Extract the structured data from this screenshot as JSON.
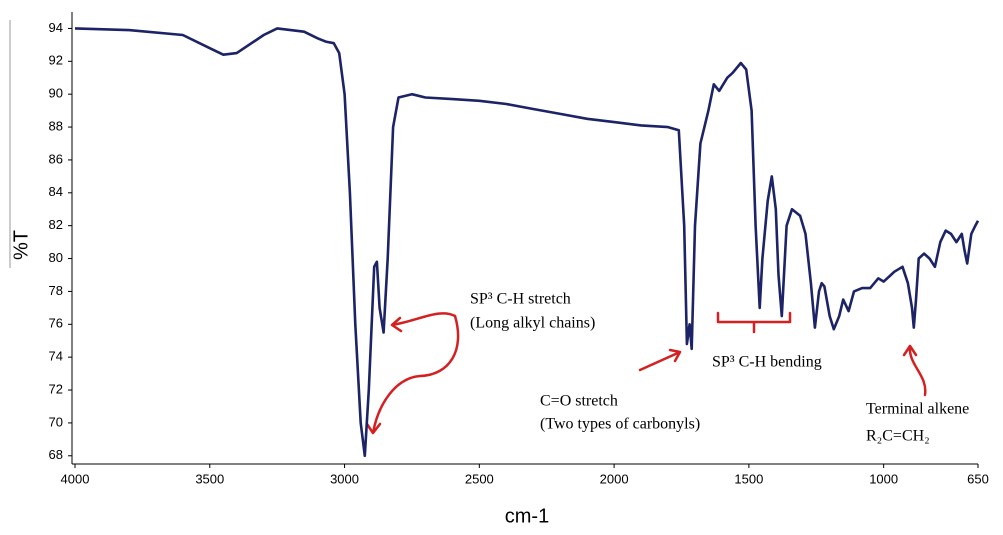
{
  "chart_data": {
    "type": "line",
    "xlabel": "cm-1",
    "ylabel": "%T",
    "xlim": [
      4000,
      650
    ],
    "ylim": [
      67.5,
      95
    ],
    "xticks": [
      4000,
      3500,
      3000,
      2500,
      2000,
      1500,
      1000,
      650
    ],
    "yticks": [
      68,
      70,
      72,
      74,
      76,
      78,
      80,
      82,
      84,
      86,
      88,
      90,
      92,
      94
    ],
    "grid": false,
    "annotations": [
      "SP³ C-H stretch",
      "(Long alkyl chains)",
      "C=O stretch",
      "(Two types of carbonyls)",
      "SP³ C-H bending",
      "Terminal alkene",
      "R₂C=CH₂"
    ],
    "x": [
      4000,
      3800,
      3600,
      3500,
      3450,
      3400,
      3300,
      3250,
      3150,
      3100,
      3070,
      3040,
      3020,
      3000,
      2980,
      2960,
      2940,
      2925,
      2910,
      2890,
      2880,
      2870,
      2855,
      2840,
      2820,
      2800,
      2750,
      2700,
      2600,
      2500,
      2400,
      2300,
      2200,
      2100,
      2000,
      1900,
      1800,
      1760,
      1740,
      1730,
      1720,
      1712,
      1700,
      1680,
      1650,
      1630,
      1610,
      1580,
      1560,
      1530,
      1510,
      1490,
      1475,
      1460,
      1450,
      1430,
      1415,
      1400,
      1390,
      1378,
      1360,
      1340,
      1310,
      1290,
      1270,
      1255,
      1240,
      1230,
      1220,
      1200,
      1185,
      1165,
      1150,
      1130,
      1110,
      1080,
      1050,
      1020,
      1000,
      960,
      930,
      910,
      895,
      888,
      880,
      870,
      850,
      830,
      810,
      790,
      770,
      750,
      730,
      710,
      700,
      690,
      675,
      660,
      650
    ],
    "series": [
      {
        "color": "#1c2366",
        "values": [
          94.0,
          93.9,
          93.6,
          92.8,
          92.4,
          92.5,
          93.6,
          94.0,
          93.8,
          93.4,
          93.2,
          93.1,
          92.5,
          90,
          84,
          76,
          70,
          68,
          72,
          79.5,
          79.8,
          77,
          75.5,
          80,
          88,
          89.8,
          90,
          89.8,
          89.7,
          89.6,
          89.4,
          89.1,
          88.8,
          88.5,
          88.3,
          88.1,
          88.0,
          87.8,
          82,
          74.8,
          76,
          74.5,
          82,
          87,
          89,
          90.6,
          90.2,
          91.0,
          91.3,
          91.9,
          91.5,
          89,
          82,
          77,
          80,
          83.5,
          85,
          83,
          79,
          76.5,
          82,
          83,
          82.6,
          81.5,
          78.5,
          75.8,
          78,
          78.5,
          78.3,
          76.5,
          75.7,
          76.5,
          77.5,
          76.8,
          78,
          78.2,
          78.2,
          78.8,
          78.6,
          79.2,
          79.5,
          78.5,
          77,
          75.8,
          77.5,
          80,
          80.3,
          80,
          79.5,
          81,
          81.7,
          81.5,
          81,
          81.5,
          80.5,
          79.7,
          81.5,
          82,
          82.3
        ]
      }
    ]
  }
}
